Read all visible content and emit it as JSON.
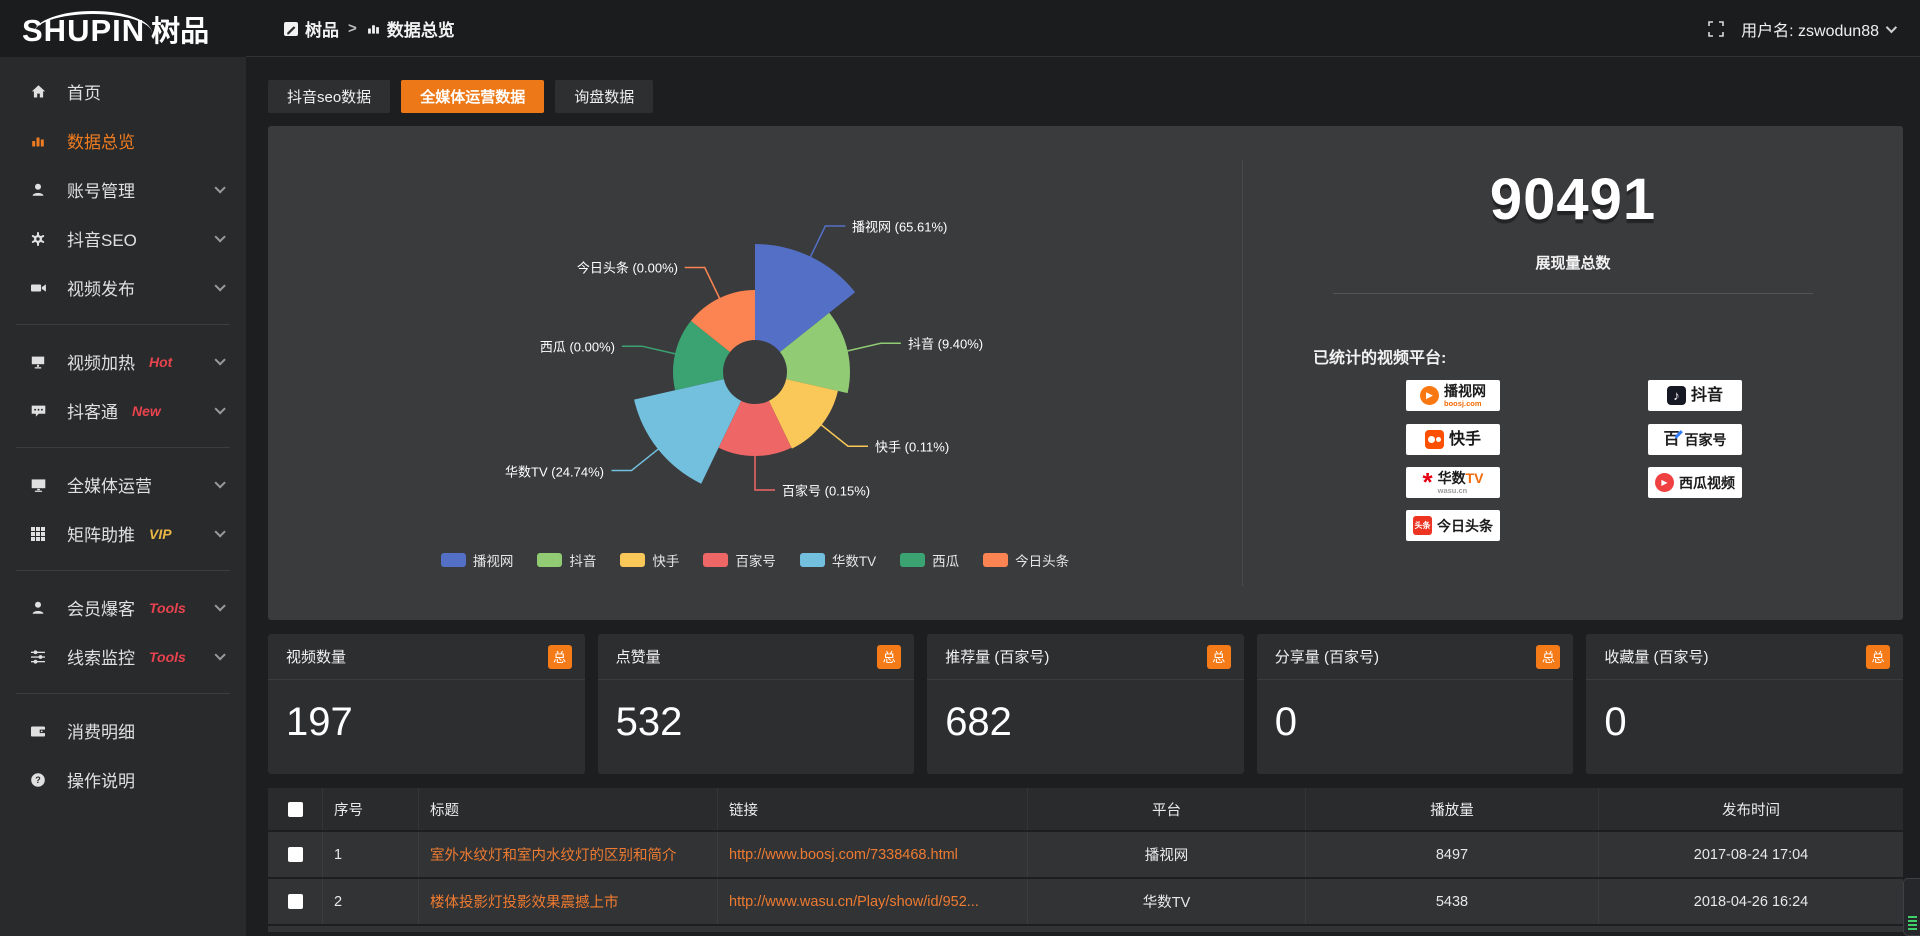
{
  "topbar": {
    "logo_text": "SHUPIN",
    "logo_suffix": "树品",
    "breadcrumb_root": "树品",
    "breadcrumb_sep": ">",
    "breadcrumb_current": "数据总览",
    "username": "用户名: zswodun88"
  },
  "sidebar": {
    "items": [
      {
        "label": "首页"
      },
      {
        "label": "数据总览"
      },
      {
        "label": "账号管理"
      },
      {
        "label": "抖音SEO"
      },
      {
        "label": "视频发布"
      },
      {
        "label": "视频加热",
        "tag": "Hot"
      },
      {
        "label": "抖客通",
        "tag": "New"
      },
      {
        "label": "全媒体运营"
      },
      {
        "label": "矩阵助推",
        "tag": "VIP"
      },
      {
        "label": "会员爆客",
        "tag": "Tools"
      },
      {
        "label": "线索监控",
        "tag": "Tools"
      },
      {
        "label": "消费明细"
      },
      {
        "label": "操作说明"
      }
    ]
  },
  "tabs": [
    {
      "label": "抖音seo数据"
    },
    {
      "label": "全媒体运营数据"
    },
    {
      "label": "询盘数据"
    }
  ],
  "chart_data": {
    "type": "pie",
    "subtype": "nightingale-rose",
    "title": "",
    "unit": "percent",
    "start_angle": 0,
    "hole_radius": 32,
    "legend_position": "bottom",
    "slices": [
      {
        "name": "播视网",
        "value": 65.61,
        "label": "播视网 (65.61%)",
        "color": "#5470c6",
        "radius": 128
      },
      {
        "name": "抖音",
        "value": 9.4,
        "label": "抖音 (9.40%)",
        "color": "#91cc75",
        "radius": 95
      },
      {
        "name": "快手",
        "value": 0.11,
        "label": "快手 (0.11%)",
        "color": "#fac858",
        "radius": 85
      },
      {
        "name": "百家号",
        "value": 0.15,
        "label": "百家号 (0.15%)",
        "color": "#ee6666",
        "radius": 84
      },
      {
        "name": "华数TV",
        "value": 24.74,
        "label": "华数TV (24.74%)",
        "color": "#73c0de",
        "radius": 124
      },
      {
        "name": "西瓜",
        "value": 0.0,
        "label": "西瓜 (0.00%)",
        "color": "#3ba272",
        "radius": 82
      },
      {
        "name": "今日头条",
        "value": 0.0,
        "label": "今日头条 (0.00%)",
        "color": "#fc8452",
        "radius": 82
      }
    ]
  },
  "summary": {
    "total_value": "90491",
    "total_label": "展现量总数",
    "platforms_title": "已统计的视频平台:",
    "platform_badges": [
      {
        "name": "播视网",
        "sub": "boosj.com"
      },
      {
        "name": "快手"
      },
      {
        "name": "华数",
        "name2": "TV",
        "sub": "wasu.cn"
      },
      {
        "name": "今日头条",
        "icon_text": "头条"
      },
      {
        "name": "抖音"
      },
      {
        "name": "百家号",
        "icon_text": "百"
      },
      {
        "name": "西瓜视频"
      }
    ]
  },
  "stat_cards": [
    {
      "title": "视频数量",
      "badge": "总",
      "value": "197"
    },
    {
      "title": "点赞量",
      "badge": "总",
      "value": "532"
    },
    {
      "title": "推荐量 (百家号)",
      "badge": "总",
      "value": "682"
    },
    {
      "title": "分享量 (百家号)",
      "badge": "总",
      "value": "0"
    },
    {
      "title": "收藏量 (百家号)",
      "badge": "总",
      "value": "0"
    }
  ],
  "table": {
    "columns": [
      "序号",
      "标题",
      "链接",
      "平台",
      "播放量",
      "发布时间"
    ],
    "rows": [
      {
        "index": "1",
        "title": "室外水纹灯和室内水纹灯的区别和简介",
        "link": "http://www.boosj.com/7338468.html",
        "platform": "播视网",
        "plays": "8497",
        "published": "2017-08-24 17:04"
      },
      {
        "index": "2",
        "title": "楼体投影灯投影效果震撼上市",
        "link": "http://www.wasu.cn/Play/show/id/952...",
        "platform": "华数TV",
        "plays": "5438",
        "published": "2018-04-26 16:24"
      }
    ]
  }
}
